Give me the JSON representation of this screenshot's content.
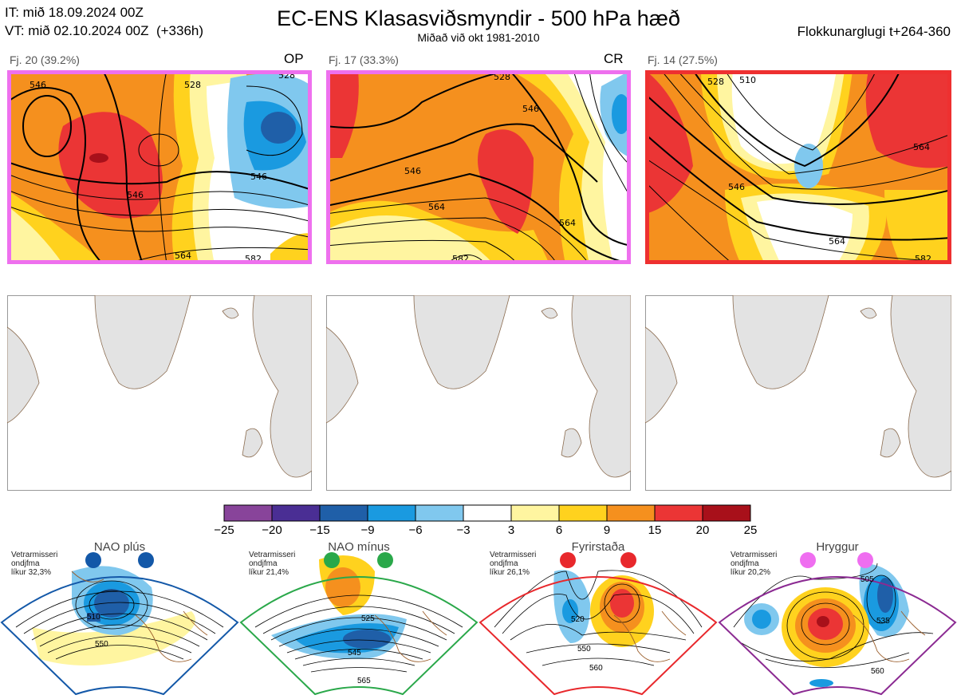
{
  "header": {
    "it": "IT: mið 18.09.2024 00Z",
    "vt": "VT: mið 02.10.2024 00Z  (+336h)",
    "title": "EC-ENS Klasasviðsmyndir - 500 hPa hæð",
    "subtitle": "Miðað við okt 1981-2010",
    "window": "Flokkunarglugi t+264-360"
  },
  "clusters": [
    {
      "label": "Fj. 20 (39.2%)",
      "tag": "OP",
      "border_color": "#ee70ee",
      "contours": [
        "546",
        "528",
        "546",
        "546",
        "528",
        "564",
        "582"
      ]
    },
    {
      "label": "Fj. 17 (33.3%)",
      "tag": "CR",
      "border_color": "#ee70ee",
      "contours": [
        "528",
        "546",
        "546",
        "564",
        "564",
        "582"
      ]
    },
    {
      "label": "Fj. 14 (27.5%)",
      "tag": "",
      "border_color": "#ee3030",
      "contours": [
        "510",
        "528",
        "546",
        "564",
        "564",
        "582"
      ]
    }
  ],
  "colorbar": {
    "ticks": [
      "−25",
      "−20",
      "−15",
      "−9",
      "−6",
      "−3",
      "3",
      "6",
      "9",
      "15",
      "20",
      "25"
    ],
    "colors": [
      "#88449a",
      "#4a2e94",
      "#1f5fa8",
      "#1a9ae0",
      "#80c8ee",
      "#ffffff",
      "#fff5a0",
      "#ffd21e",
      "#f5901e",
      "#eb3535",
      "#a8101a"
    ]
  },
  "regimes": [
    {
      "name": "NAO plús",
      "info": [
        "Vetrarmisseri",
        "ondjfma",
        "líkur 32,3%"
      ],
      "color": "#1358a8",
      "contours": [
        "510",
        "550"
      ]
    },
    {
      "name": "NAO mínus",
      "info": [
        "Vetrarmisseri",
        "ondjfma",
        "líkur 21,4%"
      ],
      "color": "#2aa84a",
      "contours": [
        "525",
        "545",
        "565"
      ]
    },
    {
      "name": "Fyrirstaða",
      "info": [
        "Vetrarmisseri",
        "ondjfma",
        "líkur 26,1%"
      ],
      "color": "#e8282c",
      "contours": [
        "520",
        "550",
        "560"
      ]
    },
    {
      "name": "Hryggur",
      "info": [
        "Vetrarmisseri",
        "ondjfma",
        "líkur 20,2%"
      ],
      "color": "#ef6ef0",
      "contours": [
        "505",
        "535",
        "560"
      ]
    }
  ]
}
